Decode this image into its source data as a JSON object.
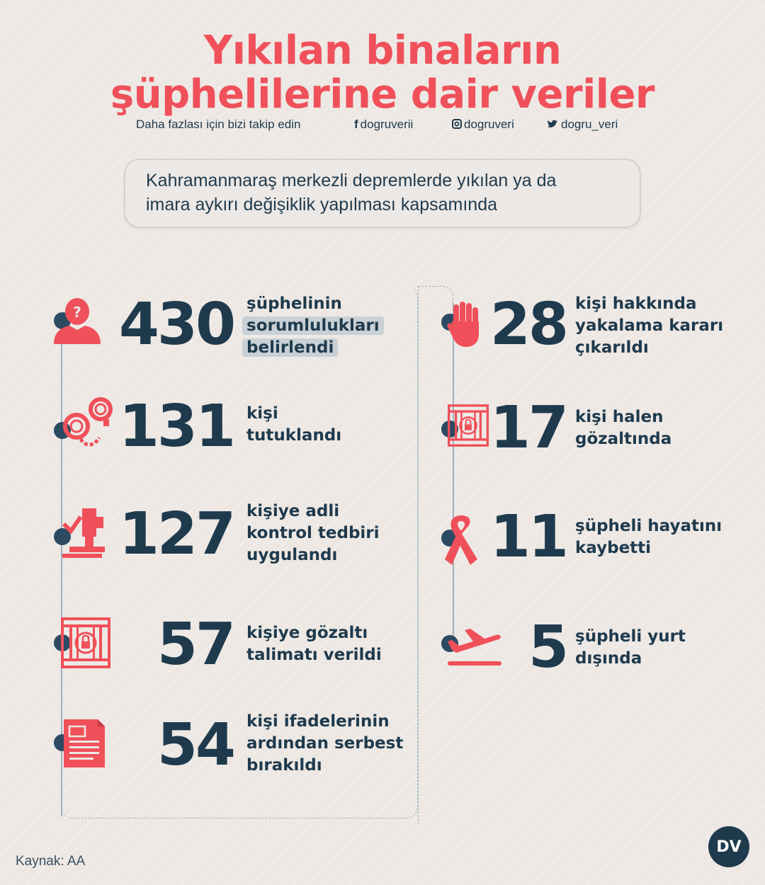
{
  "header": {
    "title_line1": "Yıkılan binaların",
    "title_line2": "şüphelilerine dair veriler",
    "follow_text": "Daha fazlası için bizi takip edin",
    "facebook": "dogruverii",
    "instagram": "dogruveri",
    "twitter": "dogru_veri"
  },
  "subtitle": {
    "line1": "Kahramanmaraş merkezli depremlerde yıkılan ya da",
    "line2": "imara aykırı değişiklik yapılması kapsamında"
  },
  "left_stats": [
    {
      "value": "430",
      "lines": [
        "şüphelinin",
        "sorumlulukları",
        "belirlendi"
      ],
      "icon": "suspect-icon"
    },
    {
      "value": "131",
      "lines": [
        "kişi",
        "tutuklandı"
      ],
      "icon": "handcuffs-icon"
    },
    {
      "value": "127",
      "lines": [
        "kişiye adli",
        "kontrol tedbiri",
        "uygulandı"
      ],
      "icon": "fingerprint-scanner-icon"
    },
    {
      "value": "57",
      "lines": [
        "kişiye gözaltı",
        "talimatı verildi"
      ],
      "icon": "jail-icon"
    },
    {
      "value": "54",
      "lines": [
        "kişi ifadelerinin",
        "ardından serbest",
        "bırakıldı"
      ],
      "icon": "document-icon"
    }
  ],
  "right_stats": [
    {
      "value": "28",
      "lines": [
        "kişi hakkında",
        "yakalama kararı",
        "çıkarıldı"
      ],
      "icon": "stop-hand-icon"
    },
    {
      "value": "17",
      "lines": [
        "kişi halen",
        "gözaltında"
      ],
      "icon": "jail-icon"
    },
    {
      "value": "11",
      "lines": [
        "şüpheli hayatını",
        "kaybetti"
      ],
      "icon": "ribbon-icon"
    },
    {
      "value": "5",
      "lines": [
        "şüpheli yurt",
        "dışında"
      ],
      "icon": "airplane-takeoff-icon"
    }
  ],
  "footer": {
    "source": "Kaynak: AA",
    "logo": "DV"
  },
  "colors": {
    "accent": "#f0505a",
    "navy": "#1f3a4d",
    "background": "#ede8e4"
  }
}
